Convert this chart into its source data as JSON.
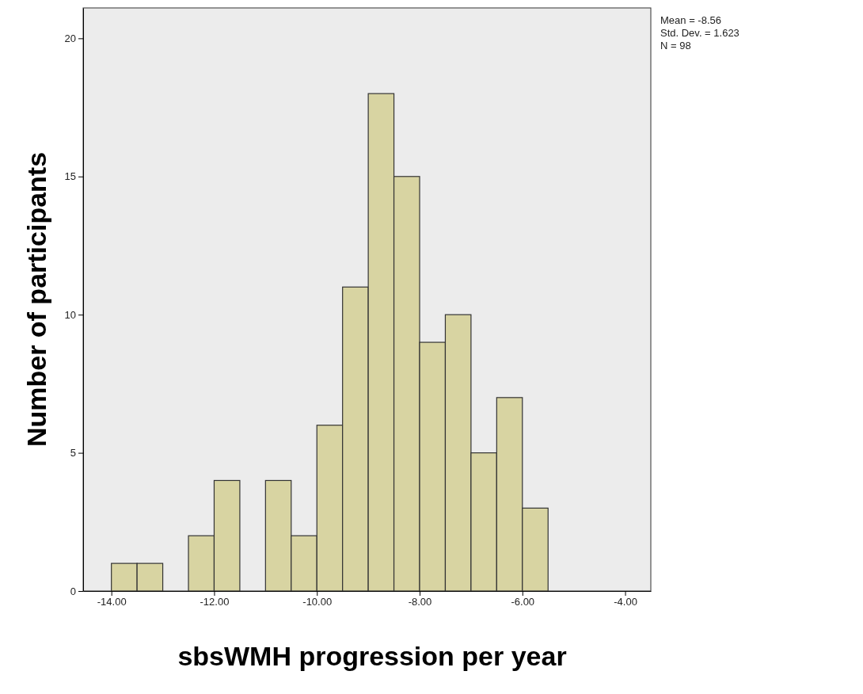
{
  "chart_data": {
    "type": "histogram",
    "xlabel": "sbsWMH progression per year",
    "ylabel": "Number of participants",
    "bins": [
      -14,
      -13.5,
      -13,
      -12.5,
      -12,
      -11.5,
      -11,
      -10.5,
      -10,
      -9.5,
      -9,
      -8.5,
      -8,
      -7.5,
      -7,
      -6.5,
      -6,
      -5.5
    ],
    "values": [
      1,
      1,
      0,
      2,
      4,
      0,
      4,
      2,
      6,
      11,
      18,
      15,
      9,
      10,
      5,
      7,
      3
    ],
    "color": "#d8d4a2",
    "xlim": [
      -14.55,
      -3.5
    ],
    "xticks": [
      {
        "value": -14,
        "label": "-14.00"
      },
      {
        "value": -12,
        "label": "-12.00"
      },
      {
        "value": -10,
        "label": "-10.00"
      },
      {
        "value": -8,
        "label": "-8.00"
      },
      {
        "value": -6,
        "label": "-6.00"
      },
      {
        "value": -4,
        "label": "-4.00"
      }
    ],
    "ylim": [
      0,
      21.1
    ],
    "yticks": [
      0,
      5,
      10,
      15,
      20
    ],
    "grid": false,
    "annotations": [
      "Mean = -8.56",
      "Std. Dev. = 1.623",
      "N = 98"
    ]
  }
}
